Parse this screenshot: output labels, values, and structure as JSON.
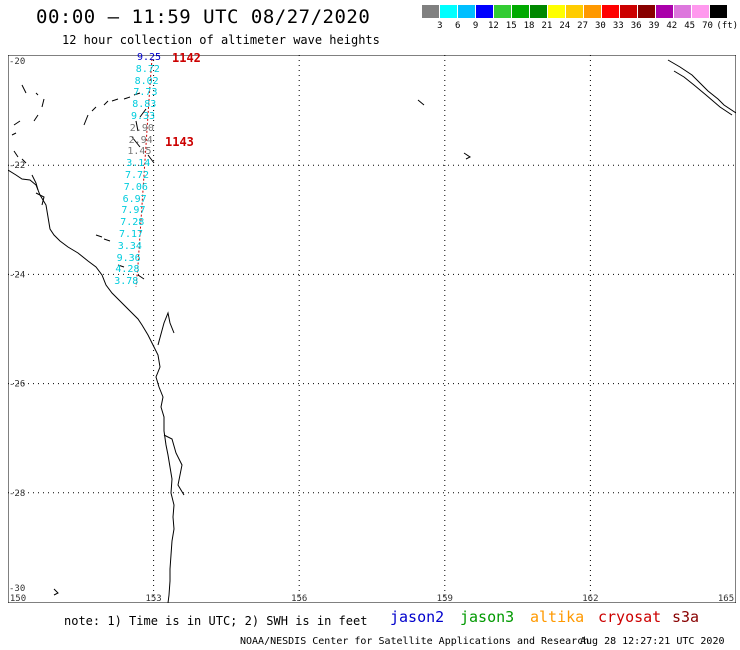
{
  "header": {
    "title": "00:00 – 11:59 UTC 08/27/2020",
    "subtitle": "12 hour collection of altimeter wave heights"
  },
  "legend": {
    "colors": [
      "#808080",
      "#00ffff",
      "#00bfff",
      "#0000ff",
      "#33cc33",
      "#00aa00",
      "#008800",
      "#ffff00",
      "#ffcc00",
      "#ff9900",
      "#ff0000",
      "#cc0000",
      "#880000",
      "#aa00aa",
      "#dd77dd",
      "#ff99ee",
      "#000000"
    ],
    "labels": [
      "3",
      "6",
      "9",
      "12",
      "15",
      "18",
      "21",
      "24",
      "27",
      "30",
      "33",
      "36",
      "39",
      "42",
      "45",
      "70"
    ],
    "unit": "(ft)"
  },
  "axes": {
    "lat_labels": [
      "-20",
      "-22",
      "-24",
      "-26",
      "-28",
      "-30"
    ],
    "lon_labels": [
      "150",
      "153",
      "156",
      "159",
      "162",
      "165"
    ]
  },
  "passes": [
    {
      "id": "1142"
    },
    {
      "id": "1143"
    }
  ],
  "swh_values": [
    {
      "v": "9.25",
      "c": "#0000cc"
    },
    {
      "v": "8.72",
      "c": "#00ccdd"
    },
    {
      "v": "8.02",
      "c": "#00ccdd"
    },
    {
      "v": "7.73",
      "c": "#00ccdd"
    },
    {
      "v": "8.83",
      "c": "#00ccdd"
    },
    {
      "v": "9.33",
      "c": "#00ccdd"
    },
    {
      "v": "2.90",
      "c": "#777777"
    },
    {
      "v": "2.94",
      "c": "#777777"
    },
    {
      "v": "1.45",
      "c": "#777777"
    },
    {
      "v": "3.14",
      "c": "#00ccdd"
    },
    {
      "v": "7.72",
      "c": "#00ccdd"
    },
    {
      "v": "7.06",
      "c": "#00ccdd"
    },
    {
      "v": "6.97",
      "c": "#00ccdd"
    },
    {
      "v": "7.97",
      "c": "#00ccdd"
    },
    {
      "v": "7.28",
      "c": "#00ccdd"
    },
    {
      "v": "7.17",
      "c": "#00ccdd"
    },
    {
      "v": "3.34",
      "c": "#00ccdd"
    },
    {
      "v": "9.36",
      "c": "#00ccdd"
    },
    {
      "v": "4.28",
      "c": "#00ccdd"
    },
    {
      "v": "3.78",
      "c": "#00ccdd"
    }
  ],
  "footer": {
    "note": "note: 1) Time is in UTC; 2) SWH is in feet",
    "missions": [
      {
        "name": "jason2",
        "color": "#0000cc"
      },
      {
        "name": "jason3",
        "color": "#009900"
      },
      {
        "name": "altika",
        "color": "#ff9900"
      },
      {
        "name": "cryosat",
        "color": "#cc0000"
      },
      {
        "name": "s3a",
        "color": "#880000"
      }
    ],
    "credit": "NOAA/NESDIS Center for Satellite Applications and Research",
    "timestamp": "Aug 28 12:27:21 UTC 2020"
  }
}
